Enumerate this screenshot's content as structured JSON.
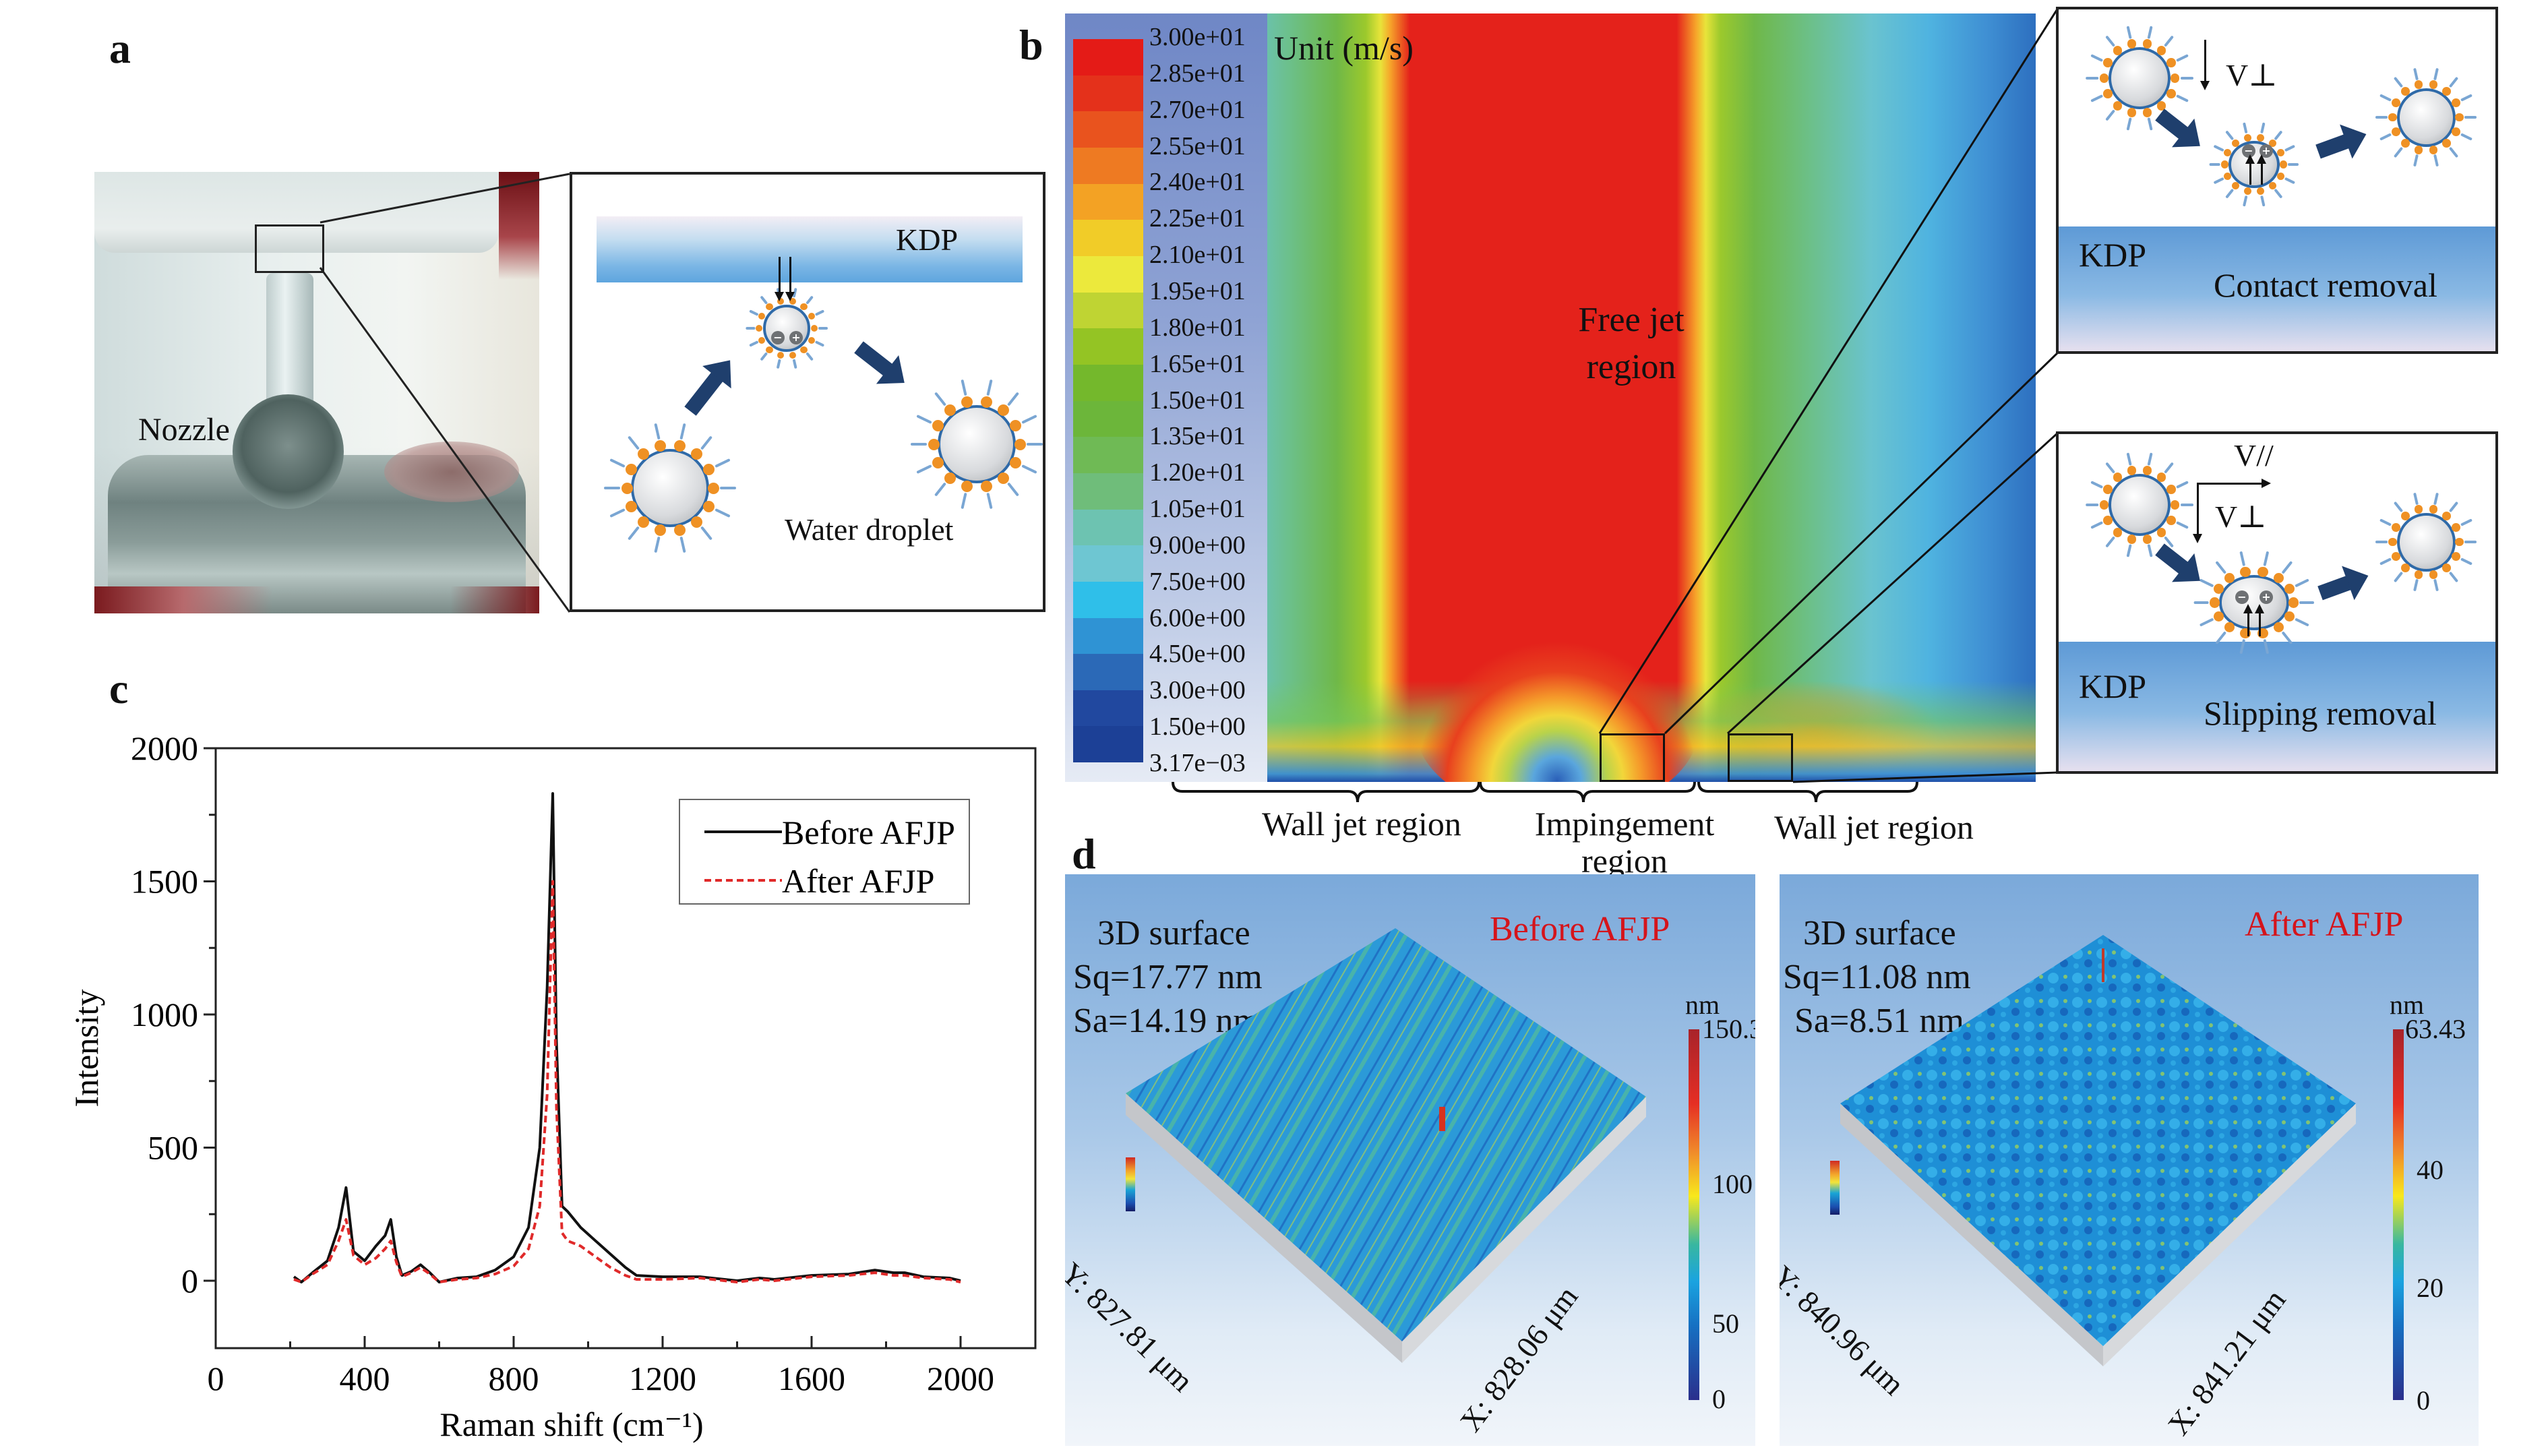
{
  "panels": {
    "a": {
      "label": "a",
      "photo_label": "Nozzle",
      "inset": {
        "surface_label": "KDP",
        "droplet_label": "Water droplet",
        "charges": [
          "−",
          "+"
        ]
      }
    },
    "b": {
      "label": "b",
      "unit_label": "Unit (m/s)",
      "colorbar_ticks": [
        "3.00e+01",
        "2.85e+01",
        "2.70e+01",
        "2.55e+01",
        "2.40e+01",
        "2.25e+01",
        "2.10e+01",
        "1.95e+01",
        "1.80e+01",
        "1.65e+01",
        "1.50e+01",
        "1.35e+01",
        "1.20e+01",
        "1.05e+01",
        "9.00e+00",
        "7.50e+00",
        "6.00e+00",
        "4.50e+00",
        "3.00e+00",
        "1.50e+00",
        "3.17e−03"
      ],
      "colorbar_colors": [
        "#e41b17",
        "#e4311b",
        "#e9531e",
        "#ee7a22",
        "#f3a224",
        "#f1cc28",
        "#ece93c",
        "#bfd433",
        "#94c424",
        "#74b82c",
        "#6cb63a",
        "#6fba55",
        "#6fbd7a",
        "#6dc3b1",
        "#6ec6d2",
        "#2fbfe9",
        "#2f93d4",
        "#2b69b7",
        "#21489f",
        "#1c4096"
      ],
      "region_labels": {
        "free_jet": [
          "Free jet",
          "region"
        ],
        "wall_jet_left": "Wall jet region",
        "impingement": [
          "Impingement",
          "region"
        ],
        "wall_jet_right": "Wall jet region"
      },
      "inset_top": {
        "surface_label": "KDP",
        "mechanism": "Contact removal",
        "velocity": "V⊥",
        "charges": [
          "−",
          "+"
        ]
      },
      "inset_bottom": {
        "surface_label": "KDP",
        "mechanism": "Slipping removal",
        "velocity_parallel": "V//",
        "velocity_perp": "V⊥",
        "charges": [
          "−",
          "+"
        ]
      }
    },
    "c": {
      "label": "c"
    },
    "d": {
      "label": "d",
      "before": {
        "title": "Before AFJP",
        "heading": "3D surface",
        "sq": "Sq=17.77 nm",
        "sa": "Sa=14.19 nm",
        "unit": "nm",
        "colorbar_ticks": [
          "150.3",
          "100",
          "50",
          "0"
        ],
        "x_axis": "X: 828.06 μm",
        "y_axis": "Y: 827.81 μm"
      },
      "after": {
        "title": "After AFJP",
        "heading": "3D surface",
        "sq": "Sq=11.08 nm",
        "sa": "Sa=8.51 nm",
        "unit": "nm",
        "colorbar_ticks": [
          "63.43",
          "40",
          "20",
          "0"
        ],
        "x_axis": "X: 841.21 μm",
        "y_axis": "Y: 840.96 μm"
      }
    }
  },
  "chart_data": {
    "type": "line",
    "title": "",
    "xlabel": "Raman shift (cm⁻¹)",
    "ylabel": "Intensity",
    "xlim": [
      0,
      2200
    ],
    "ylim": [
      -250,
      2000
    ],
    "xticks": [
      0,
      400,
      800,
      1200,
      1600,
      2000
    ],
    "yticks": [
      0,
      500,
      1000,
      1500,
      2000
    ],
    "grid": false,
    "legend_position": "top-right",
    "series": [
      {
        "name": "Before AFJP",
        "color": "#111111",
        "style": "solid",
        "x": [
          210,
          230,
          260,
          300,
          330,
          350,
          370,
          400,
          430,
          455,
          470,
          485,
          500,
          525,
          550,
          575,
          600,
          650,
          700,
          750,
          800,
          840,
          870,
          890,
          905,
          915,
          930,
          945,
          980,
          1020,
          1060,
          1100,
          1130,
          1200,
          1300,
          1400,
          1460,
          1500,
          1600,
          1700,
          1770,
          1820,
          1850,
          1900,
          1970,
          2000
        ],
        "y": [
          15,
          -5,
          30,
          75,
          200,
          350,
          110,
          75,
          130,
          170,
          230,
          90,
          20,
          35,
          60,
          30,
          -5,
          10,
          15,
          40,
          90,
          200,
          500,
          1100,
          1830,
          900,
          280,
          260,
          200,
          150,
          100,
          50,
          20,
          15,
          15,
          0,
          10,
          5,
          20,
          25,
          40,
          30,
          30,
          15,
          10,
          0
        ],
        "peak": {
          "x": 910,
          "y": 1830
        }
      },
      {
        "name": "After AFJP",
        "color": "#e02a2a",
        "style": "dashed",
        "x": [
          210,
          230,
          260,
          300,
          330,
          350,
          370,
          400,
          430,
          455,
          470,
          485,
          500,
          525,
          550,
          575,
          600,
          650,
          700,
          750,
          800,
          840,
          870,
          890,
          905,
          915,
          930,
          945,
          980,
          1020,
          1060,
          1100,
          1130,
          1200,
          1300,
          1400,
          1460,
          1500,
          1600,
          1700,
          1770,
          1820,
          1850,
          1900,
          1970,
          2000
        ],
        "y": [
          5,
          -5,
          25,
          60,
          150,
          230,
          95,
          60,
          85,
          120,
          150,
          70,
          15,
          30,
          50,
          25,
          -5,
          5,
          10,
          25,
          55,
          120,
          280,
          700,
          1500,
          650,
          180,
          150,
          130,
          90,
          50,
          20,
          5,
          5,
          10,
          -5,
          5,
          0,
          15,
          20,
          30,
          20,
          20,
          10,
          5,
          -5
        ],
        "peak": {
          "x": 910,
          "y": 1500
        }
      }
    ]
  }
}
